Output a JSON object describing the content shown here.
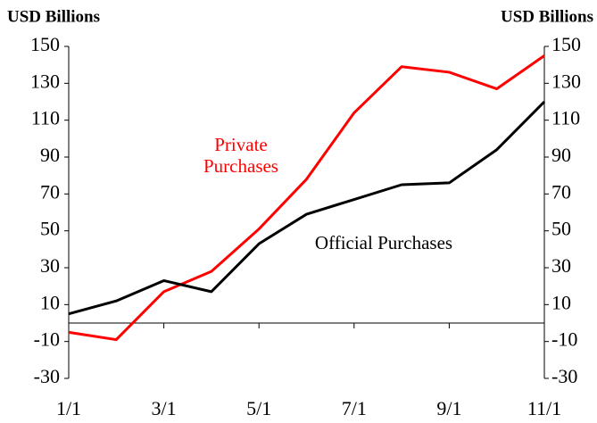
{
  "chart_data": {
    "type": "line",
    "y_label": "USD Billions",
    "y2_label": "USD Billions",
    "categories": [
      "1/1",
      null,
      "3/1",
      null,
      "5/1",
      null,
      "7/1",
      null,
      "9/1",
      null,
      "11/1"
    ],
    "series": [
      {
        "name": "Private Purchases",
        "color": "#ff0000",
        "values": [
          -5,
          -9,
          17,
          28,
          51,
          78,
          114,
          139,
          136,
          127,
          145
        ]
      },
      {
        "name": "Official Purchases",
        "color": "#000000",
        "values": [
          5,
          12,
          23,
          17,
          43,
          59,
          67,
          75,
          76,
          94,
          120
        ]
      }
    ],
    "ylim": [
      -30,
      150
    ],
    "yticks": [
      -30,
      -10,
      10,
      30,
      50,
      70,
      90,
      110,
      130,
      150
    ],
    "y2lim": [
      -30,
      150
    ],
    "y2ticks": [
      -30,
      -10,
      10,
      30,
      50,
      70,
      90,
      110,
      130,
      150
    ],
    "grid": false
  }
}
